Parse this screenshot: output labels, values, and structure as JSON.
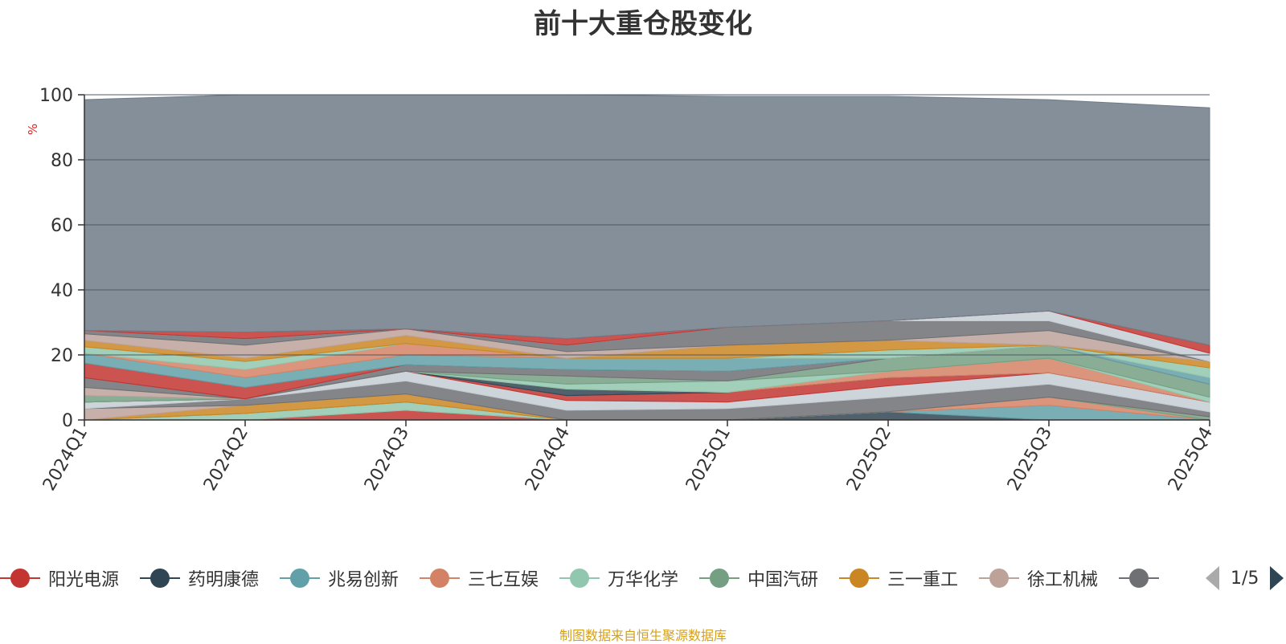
{
  "chart_data": {
    "type": "area",
    "title": "前十大重仓股变化",
    "ylabel": "%",
    "ylim": [
      0,
      100
    ],
    "yticks": [
      0,
      20,
      40,
      60,
      80,
      100
    ],
    "categories": [
      "2024Q1",
      "2024Q2",
      "2024Q3",
      "2024Q4",
      "2025Q1",
      "2025Q2",
      "2025Q3",
      "2025Q4"
    ],
    "series": [
      {
        "name": "阳光电源",
        "color": "#c23531",
        "values": [
          0,
          0,
          3,
          0,
          0,
          0,
          0,
          0
        ]
      },
      {
        "name": "药明康德",
        "color": "#2f4554",
        "values": [
          0,
          0,
          0,
          0,
          0,
          2.5,
          0,
          0
        ]
      },
      {
        "name": "兆易创新",
        "color": "#61a0a8",
        "values": [
          0,
          0,
          0,
          0,
          0,
          0,
          4.5,
          0
        ]
      },
      {
        "name": "三七互娱",
        "color": "#d48265",
        "values": [
          0,
          0,
          0,
          0,
          0,
          0,
          2.5,
          0
        ]
      },
      {
        "name": "万华化学",
        "color": "#91c7ae",
        "values": [
          0,
          2,
          2.5,
          0,
          0,
          0,
          0,
          0
        ]
      },
      {
        "name": "中国汽研",
        "color": "#749f83",
        "values": [
          0,
          0,
          0,
          0,
          0,
          0,
          0,
          1
        ]
      },
      {
        "name": "三一重工",
        "color": "#ca8622",
        "values": [
          0,
          2.5,
          2.5,
          0,
          0,
          0,
          0,
          0
        ]
      },
      {
        "name": "徐工机械",
        "color": "#bda29a",
        "values": [
          3.5,
          0,
          0,
          0,
          0,
          0,
          0,
          0
        ]
      },
      {
        "name": "",
        "color": "#6e7074",
        "values": [
          0,
          2,
          4,
          3,
          3.5,
          4.5,
          4,
          1.5
        ]
      },
      {
        "name": "",
        "color": "#c4ccd3",
        "values": [
          2,
          0,
          3,
          3,
          2,
          3.5,
          3.5,
          3
        ]
      },
      {
        "name": "",
        "color": "#c23531",
        "values": [
          0,
          0,
          0,
          1.5,
          3,
          2.5,
          0,
          0
        ]
      },
      {
        "name": "",
        "color": "#2f4554",
        "values": [
          0,
          0,
          0,
          2,
          0,
          0,
          0,
          0
        ]
      },
      {
        "name": "",
        "color": "#d48265",
        "values": [
          0,
          0,
          0,
          0,
          0,
          2,
          4.5,
          0
        ]
      },
      {
        "name": "",
        "color": "#91c7ae",
        "values": [
          0,
          0,
          0,
          1.5,
          3.5,
          0,
          0,
          1.5
        ]
      },
      {
        "name": "",
        "color": "#749f83",
        "values": [
          2,
          0,
          0,
          2.5,
          0,
          4,
          4,
          4
        ]
      },
      {
        "name": "",
        "color": "#bda29a",
        "values": [
          2.5,
          0,
          0,
          0,
          0,
          0,
          0,
          0
        ]
      },
      {
        "name": "",
        "color": "#6e7074",
        "values": [
          3,
          0,
          2,
          2,
          3,
          0,
          0,
          0
        ]
      },
      {
        "name": "",
        "color": "#c23531",
        "values": [
          4.5,
          3.5,
          0,
          0,
          0,
          0,
          0,
          0
        ]
      },
      {
        "name": "",
        "color": "#61a0a8",
        "values": [
          3,
          3,
          3,
          3.5,
          4,
          0,
          0,
          2
        ]
      },
      {
        "name": "",
        "color": "#d48265",
        "values": [
          0,
          2.5,
          3.5,
          0,
          0,
          0,
          0,
          0
        ]
      },
      {
        "name": "",
        "color": "#91c7ae",
        "values": [
          2,
          2.5,
          0,
          0,
          0,
          2.5,
          0,
          3
        ]
      },
      {
        "name": "",
        "color": "#ca8622",
        "values": [
          2,
          1,
          2.5,
          0,
          4,
          3,
          0,
          2
        ]
      },
      {
        "name": "",
        "color": "#bda29a",
        "values": [
          2,
          4,
          2,
          2,
          0,
          0,
          4.5,
          0
        ]
      },
      {
        "name": "",
        "color": "#6e7074",
        "values": [
          1,
          2,
          0,
          2,
          5.5,
          6,
          3,
          0
        ]
      },
      {
        "name": "",
        "color": "#c4ccd3",
        "values": [
          0,
          0,
          0,
          0,
          0,
          0,
          3,
          2.5
        ]
      },
      {
        "name": "",
        "color": "#c23531",
        "values": [
          0,
          2,
          0,
          2,
          0,
          0,
          0,
          2.5
        ]
      },
      {
        "name": "",
        "color": "#6e7b87",
        "values": [
          71,
          73,
          72,
          75,
          71,
          69,
          65,
          73
        ]
      }
    ],
    "legend": {
      "position": "bottom",
      "page": "1/5",
      "items": [
        {
          "name": "阳光电源",
          "color": "#c23531"
        },
        {
          "name": "药明康德",
          "color": "#2f4554"
        },
        {
          "name": "兆易创新",
          "color": "#61a0a8"
        },
        {
          "name": "三七互娱",
          "color": "#d48265"
        },
        {
          "name": "万华化学",
          "color": "#91c7ae"
        },
        {
          "name": "中国汽研",
          "color": "#749f83"
        },
        {
          "name": "三一重工",
          "color": "#ca8622"
        },
        {
          "name": "徐工机械",
          "color": "#bda29a"
        },
        {
          "name": "",
          "color": "#6e7074"
        }
      ]
    },
    "source": "制图数据来自恒生聚源数据库"
  }
}
